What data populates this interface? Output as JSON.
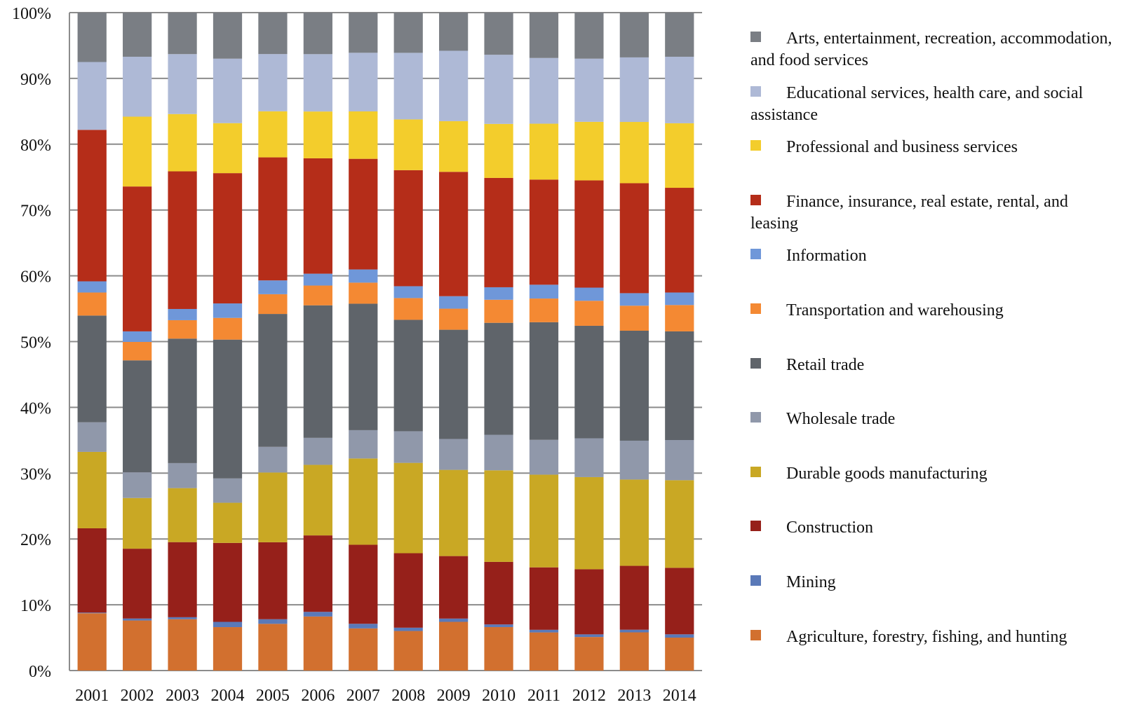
{
  "chart_data": {
    "type": "bar",
    "stacked": true,
    "percent": true,
    "categories": [
      "2001",
      "2002",
      "2003",
      "2004",
      "2005",
      "2006",
      "2007",
      "2008",
      "2009",
      "2010",
      "2011",
      "2012",
      "2013",
      "2014"
    ],
    "ylim": [
      0,
      100
    ],
    "yticks": [
      "0%",
      "10%",
      "20%",
      "30%",
      "40%",
      "50%",
      "60%",
      "70%",
      "80%",
      "90%",
      "100%"
    ],
    "grid": "horizontal",
    "legend_position": "right",
    "series": [
      {
        "name": "Agriculture, forestry, fishing, and hunting",
        "color": "#D2702F",
        "values": [
          8.7,
          7.6,
          7.8,
          6.6,
          7.1,
          8.2,
          6.4,
          6.0,
          7.4,
          6.6,
          5.8,
          5.1,
          5.8,
          5.0
        ]
      },
      {
        "name": "Mining",
        "color": "#5A79B8",
        "values": [
          0.1,
          0.3,
          0.3,
          0.8,
          0.7,
          0.7,
          0.7,
          0.5,
          0.5,
          0.4,
          0.4,
          0.4,
          0.4,
          0.5
        ]
      },
      {
        "name": "Construction",
        "color": "#96201A",
        "values": [
          12.8,
          10.6,
          11.4,
          12.0,
          11.7,
          11.6,
          12.0,
          11.3,
          9.5,
          9.5,
          9.5,
          9.9,
          9.7,
          10.1
        ]
      },
      {
        "name": "Durable goods manufacturing",
        "color": "#C9A824",
        "values": [
          11.6,
          7.7,
          8.2,
          6.1,
          10.6,
          10.7,
          13.1,
          13.7,
          13.1,
          13.9,
          14.1,
          14.0,
          13.1,
          13.3
        ]
      },
      {
        "name": "Wholesale trade",
        "color": "#9098AA",
        "values": [
          4.5,
          3.9,
          3.8,
          3.7,
          3.9,
          4.1,
          4.3,
          4.8,
          4.7,
          5.4,
          5.3,
          5.9,
          5.9,
          6.1
        ]
      },
      {
        "name": "Retail trade",
        "color": "#5F646A",
        "values": [
          16.2,
          17.0,
          18.9,
          21.1,
          20.2,
          20.1,
          19.2,
          16.9,
          16.6,
          17.0,
          17.9,
          17.1,
          16.7,
          16.5
        ]
      },
      {
        "name": "Transportation and warehousing",
        "color": "#F48933",
        "values": [
          3.5,
          2.8,
          2.8,
          3.3,
          3.0,
          3.0,
          3.2,
          3.3,
          3.2,
          3.5,
          3.6,
          3.8,
          3.8,
          4.0
        ]
      },
      {
        "name": "Information",
        "color": "#6F97D9",
        "values": [
          1.7,
          1.6,
          1.7,
          2.2,
          2.1,
          1.8,
          2.0,
          1.8,
          1.9,
          1.9,
          2.1,
          2.0,
          1.9,
          1.9
        ]
      },
      {
        "name": "Finance, insurance, real estate, rental, and leasing",
        "color": "#B52D19",
        "values": [
          23.0,
          22.0,
          20.9,
          19.8,
          18.7,
          17.5,
          16.8,
          17.6,
          18.9,
          16.6,
          16.0,
          16.3,
          16.7,
          15.9
        ]
      },
      {
        "name": "Professional and business services",
        "color": "#F3CD2C",
        "values": [
          0.0,
          10.6,
          8.7,
          7.6,
          7.0,
          7.1,
          7.2,
          7.7,
          7.7,
          8.2,
          8.5,
          8.9,
          9.3,
          9.8
        ]
      },
      {
        "name": "Educational services, health care, and social assistance",
        "color": "#AEB9D6",
        "values": [
          10.3,
          9.1,
          9.1,
          9.8,
          8.7,
          8.7,
          8.9,
          10.1,
          10.7,
          10.5,
          10.0,
          9.6,
          9.8,
          10.1
        ]
      },
      {
        "name": "Arts, entertainment, recreation, accommodation, and food services",
        "color": "#7A7E84",
        "values": [
          7.5,
          6.7,
          6.3,
          7.0,
          6.3,
          6.3,
          6.1,
          6.1,
          5.8,
          6.4,
          6.9,
          7.0,
          6.8,
          6.7
        ]
      }
    ]
  }
}
